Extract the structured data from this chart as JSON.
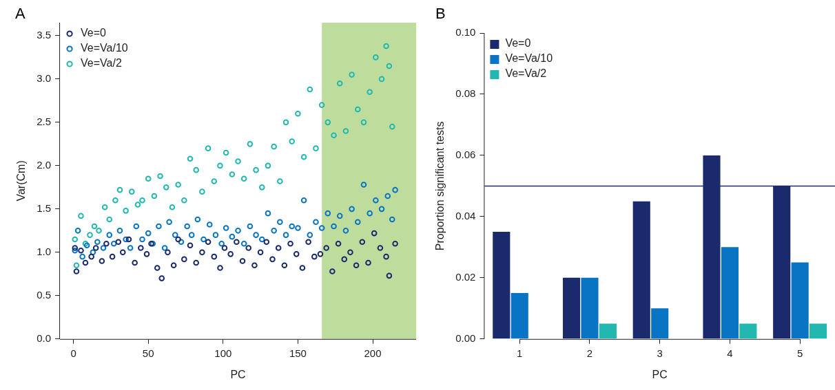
{
  "chart_data": [
    {
      "type": "scatter",
      "title": "A",
      "xlabel": "PC",
      "ylabel": "Var(Cm)",
      "marker": "circle",
      "legend": "top left",
      "xlim": [
        -9,
        229
      ],
      "xticks": [
        0,
        50,
        100,
        150,
        200
      ],
      "ylim": [
        0,
        3.65
      ],
      "yticks": [
        {
          "value": 0,
          "label": "0.0"
        },
        {
          "value": 0.5,
          "label": "0.5"
        },
        {
          "value": 1,
          "label": "1.0"
        },
        {
          "value": 1.5,
          "label": "1.5"
        },
        {
          "value": 2,
          "label": "2.0"
        },
        {
          "value": 2.5,
          "label": "2.5"
        },
        {
          "value": 3,
          "label": "3.0"
        },
        {
          "value": 3.5,
          "label": "3.5"
        }
      ],
      "bands": [
        {
          "axis": "x",
          "from": 166,
          "to": 229,
          "color": "#bedd9c"
        }
      ],
      "series": [
        {
          "name": "Ve=0",
          "color": "#1a2a6c",
          "x": [
            1,
            2,
            5,
            8,
            12,
            15,
            19,
            22,
            26,
            30,
            33,
            37,
            41,
            45,
            49,
            52,
            56,
            59,
            63,
            67,
            70,
            74,
            78,
            82,
            86,
            90,
            94,
            98,
            101,
            105,
            109,
            113,
            117,
            121,
            125,
            129,
            133,
            137,
            141,
            145,
            149,
            153,
            157,
            161,
            165,
            169,
            173,
            177,
            181,
            185,
            189,
            193,
            197,
            201,
            205,
            209,
            211,
            215
          ],
          "values": [
            1.05,
            0.78,
            1.02,
            0.88,
            0.95,
            1.05,
            0.9,
            1.1,
            0.95,
            1.12,
            1.0,
            1.15,
            0.88,
            1.05,
            0.98,
            1.1,
            0.82,
            0.7,
            1.0,
            0.85,
            1.15,
            0.92,
            1.08,
            0.88,
            1.0,
            1.12,
            0.95,
            0.82,
            1.05,
            0.98,
            1.12,
            0.9,
            1.05,
            0.85,
            1.0,
            1.12,
            0.92,
            1.05,
            0.85,
            1.1,
            0.98,
            0.82,
            1.12,
            0.95,
            0.98,
            1.05,
            0.78,
            1.1,
            0.92,
            1.0,
            0.85,
            1.12,
            0.88,
            1.22,
            1.05,
            0.95,
            0.73,
            1.1
          ]
        },
        {
          "name": "Ve=Va/10",
          "color": "#0a74c4",
          "x": [
            1,
            3,
            6,
            9,
            13,
            16,
            20,
            24,
            27,
            31,
            35,
            38,
            42,
            46,
            50,
            53,
            57,
            61,
            64,
            68,
            72,
            76,
            79,
            83,
            87,
            91,
            95,
            99,
            102,
            106,
            110,
            114,
            118,
            122,
            126,
            130,
            134,
            138,
            142,
            146,
            150,
            154,
            158,
            162,
            166,
            170,
            174,
            178,
            182,
            186,
            190,
            194,
            198,
            202,
            206,
            210,
            213,
            215
          ],
          "values": [
            1.02,
            1.25,
            0.95,
            1.08,
            1.0,
            1.12,
            1.05,
            1.2,
            1.1,
            1.25,
            1.15,
            1.05,
            1.3,
            1.15,
            1.22,
            1.1,
            1.3,
            1.05,
            1.35,
            1.2,
            1.12,
            1.3,
            1.2,
            1.38,
            1.15,
            1.32,
            1.2,
            1.1,
            1.28,
            1.18,
            1.25,
            1.1,
            1.3,
            1.2,
            1.15,
            1.45,
            1.25,
            1.35,
            1.2,
            1.3,
            1.28,
            1.6,
            1.2,
            1.35,
            1.28,
            1.45,
            1.3,
            1.42,
            1.25,
            1.5,
            1.35,
            1.78,
            1.45,
            1.6,
            1.5,
            1.65,
            1.38,
            1.72
          ]
        },
        {
          "name": "Ve=Va/2",
          "color": "#22b8b0",
          "x": [
            1,
            2,
            5,
            8,
            11,
            14,
            17,
            21,
            24,
            28,
            31,
            35,
            39,
            43,
            46,
            50,
            54,
            58,
            62,
            66,
            70,
            74,
            78,
            82,
            86,
            90,
            94,
            98,
            102,
            106,
            110,
            114,
            118,
            122,
            126,
            130,
            134,
            138,
            142,
            146,
            150,
            154,
            158,
            162,
            166,
            170,
            174,
            178,
            182,
            186,
            190,
            194,
            198,
            202,
            206,
            209,
            211,
            213
          ],
          "values": [
            1.15,
            0.85,
            1.42,
            1.1,
            1.2,
            1.3,
            1.25,
            1.52,
            1.38,
            1.6,
            1.72,
            1.48,
            1.7,
            1.55,
            1.6,
            1.85,
            1.65,
            1.88,
            1.75,
            1.52,
            1.78,
            1.6,
            2.08,
            1.95,
            1.7,
            2.2,
            1.82,
            2.0,
            2.15,
            1.9,
            2.05,
            1.85,
            2.25,
            1.95,
            1.75,
            2.0,
            2.22,
            1.82,
            2.5,
            2.28,
            2.6,
            2.1,
            2.88,
            2.2,
            2.7,
            2.5,
            2.35,
            2.95,
            2.4,
            3.05,
            2.65,
            2.5,
            2.85,
            3.25,
            3.0,
            3.38,
            3.15,
            2.45
          ]
        }
      ]
    },
    {
      "type": "bar",
      "title": "B",
      "xlabel": "PC",
      "ylabel": "Proportion significant tests",
      "legend": "top left",
      "categories": [
        "1",
        "2",
        "3",
        "4",
        "5"
      ],
      "ylim": [
        0,
        0.1
      ],
      "yticks": [
        {
          "value": 0,
          "label": "0.00"
        },
        {
          "value": 0.02,
          "label": "0.02"
        },
        {
          "value": 0.04,
          "label": "0.04"
        },
        {
          "value": 0.06,
          "label": "0.06"
        },
        {
          "value": 0.08,
          "label": "0.08"
        },
        {
          "value": 0.1,
          "label": "0.10"
        }
      ],
      "ref_lines": [
        {
          "axis": "y",
          "value": 0.05,
          "color": "#1a2a6c"
        }
      ],
      "series": [
        {
          "name": "Ve=0",
          "color": "#1a2a6c",
          "values": [
            0.035,
            0.02,
            0.045,
            0.06,
            0.05
          ]
        },
        {
          "name": "Ve=Va/10",
          "color": "#0a74c4",
          "values": [
            0.015,
            0.02,
            0.01,
            0.03,
            0.025
          ]
        },
        {
          "name": "Ve=Va/2",
          "color": "#22b8b0",
          "values": [
            0,
            0.005,
            0,
            0.005,
            0.005
          ]
        }
      ]
    }
  ]
}
